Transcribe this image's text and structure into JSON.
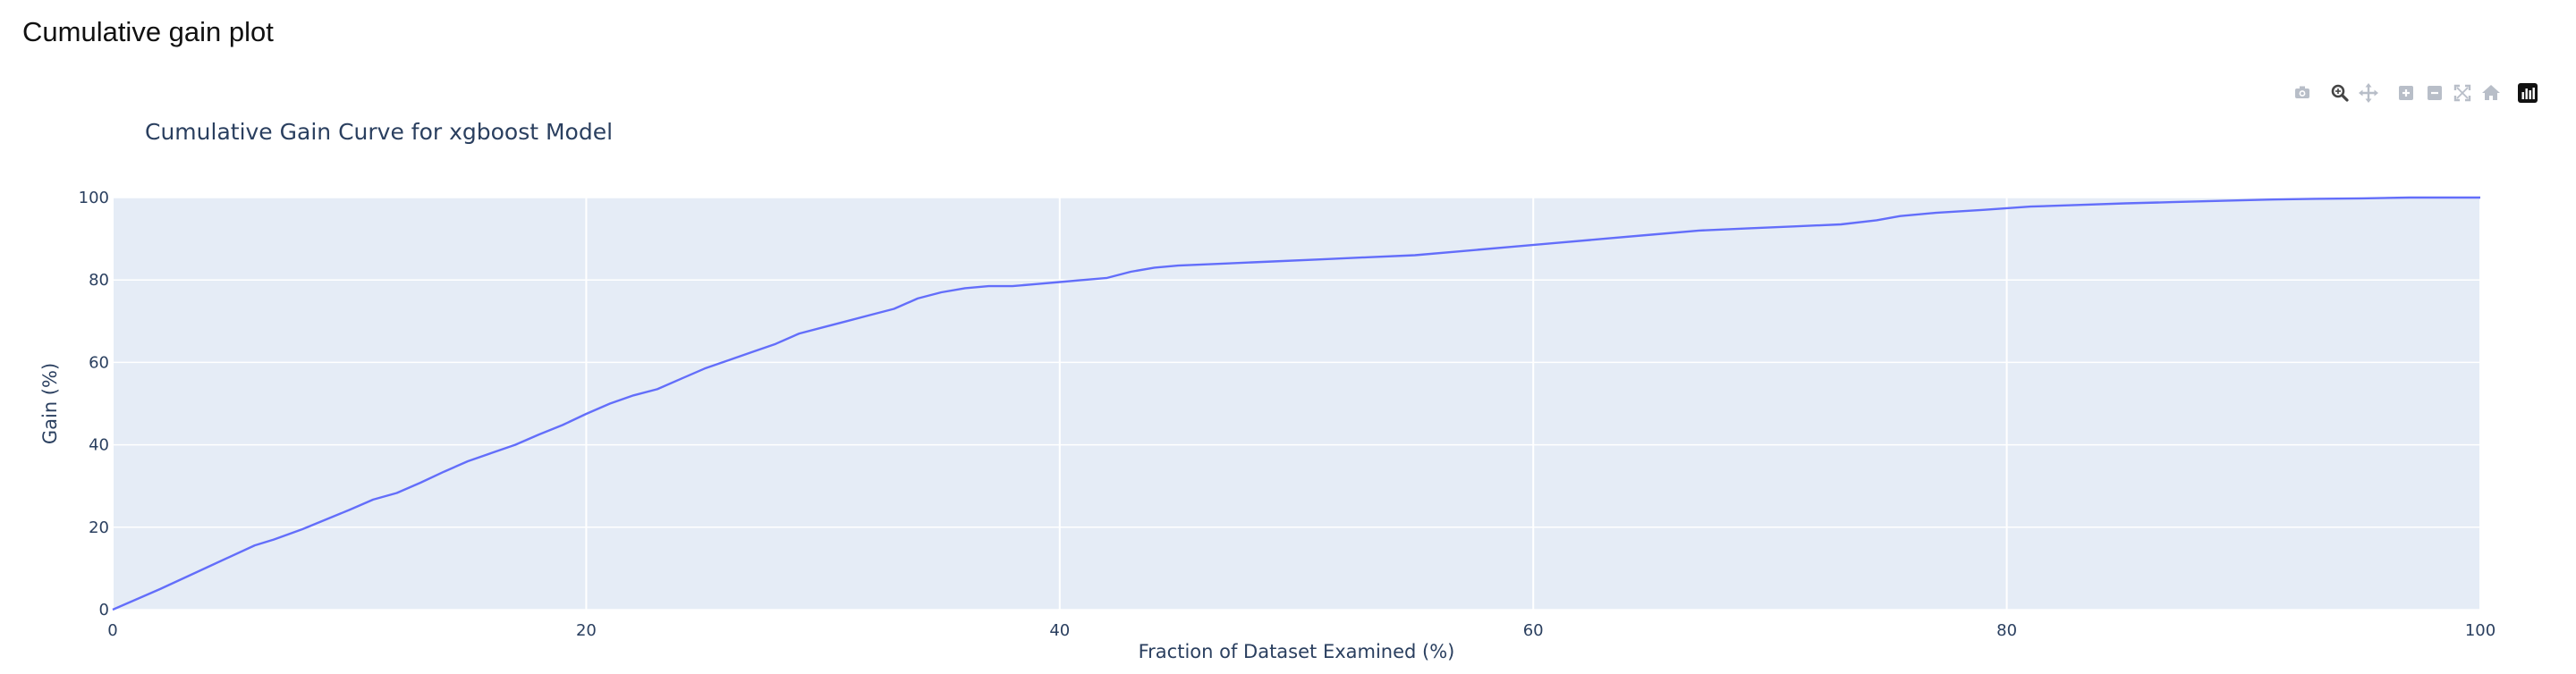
{
  "page": {
    "heading": "Cumulative gain plot"
  },
  "modebar": {
    "buttons": [
      {
        "name": "camera-icon",
        "active": false
      },
      {
        "name": "zoom-icon",
        "active": true
      },
      {
        "name": "pan-icon",
        "active": false
      },
      {
        "name": "zoom-in-icon",
        "active": false
      },
      {
        "name": "zoom-out-icon",
        "active": false
      },
      {
        "name": "autoscale-icon",
        "active": false
      },
      {
        "name": "home-icon",
        "active": false
      },
      {
        "name": "plotly-logo-icon",
        "active": false
      }
    ]
  },
  "chart_data": {
    "type": "line",
    "title": "Cumulative Gain Curve for xgboost Model",
    "xlabel": "Fraction of Dataset Examined (%)",
    "ylabel": "Gain (%)",
    "xlim": [
      0,
      100
    ],
    "ylim": [
      0,
      100
    ],
    "xticks": [
      "0",
      "20",
      "40",
      "60",
      "80",
      "100"
    ],
    "yticks": [
      "0",
      "20",
      "40",
      "60",
      "80",
      "100"
    ],
    "grid": true,
    "legend": "none",
    "colors": {
      "line": "#636efa",
      "plot_bg": "#e5ecf6",
      "grid": "#ffffff",
      "text": "#2a3f5f"
    },
    "series": [
      {
        "x": [
          0,
          2,
          4,
          6,
          6.8,
          8,
          10,
          11,
          12,
          13,
          14,
          15,
          16,
          17,
          18,
          19,
          20,
          21,
          22,
          23,
          24,
          25,
          26,
          27,
          28,
          29,
          30,
          31,
          32,
          33,
          34,
          35,
          36,
          37,
          38,
          39,
          40,
          41,
          42,
          43,
          44,
          45,
          47,
          49,
          51,
          53,
          55,
          57,
          59,
          61,
          63,
          65,
          67,
          69,
          71,
          73,
          74.5,
          75.5,
          77,
          79,
          81,
          83,
          85,
          87,
          89,
          91,
          93,
          95,
          97,
          100
        ],
        "y": [
          0,
          5,
          10.3,
          15.6,
          17,
          19.5,
          24.2,
          26.7,
          28.3,
          30.8,
          33.5,
          36,
          38,
          40,
          42.5,
          44.8,
          47.5,
          50,
          52,
          53.5,
          56,
          58.5,
          60.5,
          62.5,
          64.5,
          67,
          68.5,
          70,
          71.5,
          73,
          75.5,
          77,
          78,
          78.5,
          78.5,
          79,
          79.5,
          80,
          80.5,
          82,
          83,
          83.5,
          84,
          84.5,
          85,
          85.5,
          86,
          87,
          88,
          89,
          90,
          91,
          92,
          92.5,
          93,
          93.5,
          94.5,
          95.5,
          96.3,
          97,
          97.8,
          98.2,
          98.6,
          98.9,
          99.2,
          99.5,
          99.7,
          99.8,
          100,
          100
        ]
      }
    ]
  }
}
